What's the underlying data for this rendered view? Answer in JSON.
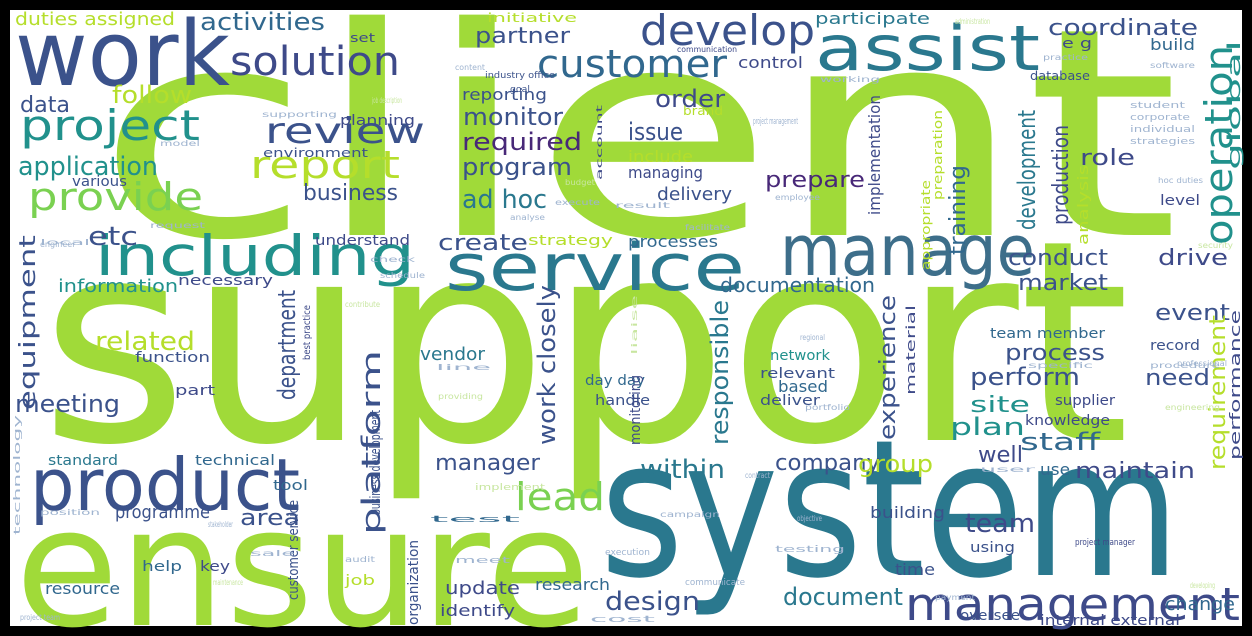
{
  "words": [
    "client",
    "support",
    "system",
    "ensure",
    "work",
    "assist",
    "manage",
    "service",
    "including",
    "product",
    "management",
    "develop",
    "solution",
    "customer",
    "project",
    "review",
    "report",
    "provide",
    "operation",
    "lead",
    "application",
    "data",
    "follow",
    "activities",
    "duties assigned",
    "partner",
    "monitor",
    "required",
    "program",
    "ad hoc",
    "issue",
    "order",
    "create",
    "business",
    "coordinate",
    "prepare",
    "role",
    "drive",
    "conduct",
    "market",
    "event",
    "documentation",
    "process",
    "perform",
    "need",
    "site",
    "plan",
    "staff",
    "well",
    "maintain",
    "company",
    "within",
    "group",
    "manager",
    "design",
    "document",
    "change",
    "team",
    "meeting",
    "related",
    "area",
    "etc",
    "information",
    "update",
    "research",
    "identify",
    "vendor",
    "resource",
    "programme",
    "standard",
    "technical",
    "tool",
    "function",
    "part",
    "help",
    "key",
    "necessary",
    "understand",
    "environment",
    "planning",
    "various",
    "reporting",
    "include",
    "managing",
    "delivery",
    "processes",
    "strategy",
    "supplier",
    "knowledge",
    "use",
    "record",
    "build",
    "control",
    "participate",
    "level",
    "team member",
    "building",
    "time",
    "using",
    "oversee",
    "internal external",
    "network",
    "relevant",
    "based",
    "deliver",
    "day day",
    "handle",
    "job",
    "initiative",
    "set",
    "e g",
    "database",
    "industry office",
    "communication",
    "goal",
    "brand",
    "global",
    "implementation",
    "development",
    "production",
    "training",
    "analysis",
    "equipment",
    "department",
    "platform",
    "work closely",
    "responsible",
    "experience",
    "requirement",
    "performance",
    "customer service",
    "organization",
    "monitoring",
    "material",
    "appropriate",
    "preparation",
    "technology",
    "business development",
    "best practice",
    "account",
    "administration",
    "practice",
    "software",
    "student",
    "corporate",
    "individual",
    "strategies",
    "hoc duties",
    "security",
    "result",
    "facilitate",
    "employee",
    "execute",
    "analyse",
    "budget",
    "local",
    "engineer",
    "request",
    "contribute",
    "check",
    "schedule",
    "regional",
    "line",
    "specific",
    "professional",
    "procedure",
    "engineering",
    "providing",
    "portfolio",
    "contract",
    "user",
    "implement",
    "stakeholder",
    "sale",
    "position",
    "maintenance",
    "audit",
    "meet",
    "execution",
    "payment",
    "testing",
    "project manager",
    "developing",
    "cost",
    "communicate",
    "campaign",
    "objective",
    "test",
    "project management",
    "working",
    "supporting",
    "job description",
    "model",
    "content",
    "liaise",
    "project team"
  ]
}
